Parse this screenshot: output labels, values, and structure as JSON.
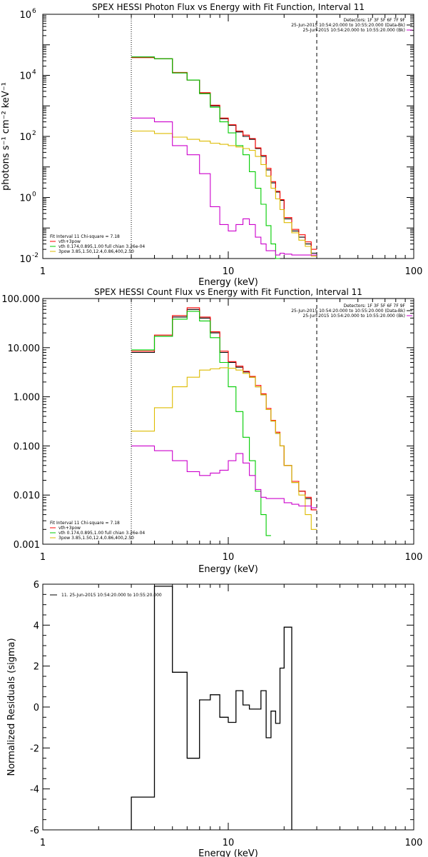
{
  "chart_data": [
    {
      "type": "line",
      "title": "SPEX HESSI Photon Flux vs Energy with Fit Function, Interval 11",
      "xlabel": "Energy (keV)",
      "ylabel": "photons s⁻¹ cm⁻² keV⁻¹",
      "xscale": "log",
      "yscale": "log",
      "xlim": [
        1,
        100
      ],
      "ylim": [
        0.01,
        1000000
      ],
      "x_ticks": [
        1,
        10,
        100
      ],
      "x_tick_labels": [
        "1",
        "10",
        "100"
      ],
      "y_ticks": [
        0.01,
        1,
        100,
        10000,
        1000000
      ],
      "y_tick_labels": [
        [
          "10",
          "-2"
        ],
        [
          "10",
          "0"
        ],
        [
          "10",
          "2"
        ],
        [
          "10",
          "4"
        ],
        [
          "10",
          "6"
        ]
      ],
      "info_lines": [
        "Detectors: 1F 3F 5F 6F 7F 9F",
        "25-Jun-2015 10:54:20.000 to 10:55:20.000 (Data-Bk)",
        "25-Jun-2015 10:54:20.000 to 10:55:20.000 (Bk)"
      ],
      "info_colors": [
        "#000000",
        "#cc00cc"
      ],
      "fit_lines": [
        "Fit Interval 11   Chi-square = 7.18",
        "vth+3pow",
        "vth 0.174,0.895,1.00  full chian 3.26e-04",
        "3pow 3.85,1.50,12.4,0.86,400,2.50"
      ],
      "fit_colors": [
        "#000000",
        "#ff0000",
        "#00cc00",
        "#ddbb00"
      ],
      "vlines": [
        {
          "x": 3,
          "style": "dotted"
        },
        {
          "x": 30,
          "style": "dashed"
        }
      ],
      "edges": [
        3,
        4,
        5,
        6,
        7,
        8,
        9,
        10,
        11,
        12,
        13,
        14,
        15,
        16,
        17,
        18,
        19,
        20,
        22,
        24,
        26,
        28,
        30
      ],
      "series": [
        {
          "color": "#000000",
          "values": [
            40000,
            35000,
            12000,
            7000,
            2600,
            1000,
            380,
            230,
            140,
            100,
            80,
            40,
            22,
            8,
            3,
            1.5,
            0.8,
            0.2,
            0.08,
            0.05,
            0.03,
            0.015
          ]
        },
        {
          "color": "#ff0000",
          "values": [
            38000,
            35000,
            12500,
            7000,
            2700,
            1050,
            400,
            240,
            150,
            110,
            85,
            42,
            24,
            9,
            3.3,
            1.6,
            0.85,
            0.22,
            0.09,
            0.06,
            0.035,
            0.02
          ]
        },
        {
          "color": "#00cc00",
          "values": [
            40000,
            35000,
            12000,
            7000,
            2500,
            900,
            300,
            130,
            50,
            25,
            7,
            2,
            0.6,
            0.12,
            0.03,
            0.01
          ]
        },
        {
          "color": "#ddbb00",
          "values": [
            150,
            125,
            95,
            80,
            70,
            60,
            55,
            50,
            45,
            40,
            35,
            22,
            12,
            5,
            2,
            0.9,
            0.4,
            0.15,
            0.07,
            0.04,
            0.025,
            0.012
          ]
        },
        {
          "color": "#cc00cc",
          "values": [
            400,
            300,
            50,
            25,
            6,
            0.5,
            0.13,
            0.08,
            0.13,
            0.2,
            0.13,
            0.05,
            0.03,
            0.018,
            0.018,
            0.013,
            0.015,
            0.014,
            0.013,
            0.013,
            0.013,
            0.013
          ]
        }
      ]
    },
    {
      "type": "line",
      "title": "SPEX HESSI Count Flux vs Energy with Fit Function, Interval 11",
      "xlabel": "Energy (keV)",
      "ylabel": "",
      "xscale": "log",
      "yscale": "log",
      "xlim": [
        1,
        100
      ],
      "ylim": [
        0.001,
        100
      ],
      "x_ticks": [
        1,
        10,
        100
      ],
      "x_tick_labels": [
        "1",
        "10",
        "100"
      ],
      "y_ticks": [
        0.001,
        0.01,
        0.1,
        1,
        10,
        100
      ],
      "y_tick_labels": [
        "0.001",
        "0.010",
        "0.100",
        "1.000",
        "10.000",
        "100.000"
      ],
      "info_lines": [
        "Detectors: 1F 3F 5F 6F 7F 9F",
        "25-Jun-2015 10:54:20.000 to 10:55:20.000 (Data-Bk)",
        "25-Jun-2015 10:54:20.000 to 10:55:20.000 (Bk)"
      ],
      "info_colors": [
        "#000000",
        "#cc00cc"
      ],
      "fit_lines": [
        "Fit Interval 11   Chi-square = 7.18",
        "vth+3pow",
        "vth 0.174,0.895,1.00  full chian 3.26e-04",
        "3pow 3.85,1.50,12.4,0.86,400,2.50"
      ],
      "fit_colors": [
        "#000000",
        "#ff0000",
        "#00cc00",
        "#ddbb00"
      ],
      "vlines": [
        {
          "x": 3,
          "style": "dotted"
        },
        {
          "x": 30,
          "style": "dashed"
        }
      ],
      "edges": [
        3,
        4,
        5,
        6,
        7,
        8,
        9,
        10,
        11,
        12,
        13,
        14,
        15,
        16,
        17,
        18,
        19,
        20,
        22,
        24,
        26,
        28,
        30
      ],
      "series": [
        {
          "color": "#000000",
          "values": [
            8,
            17,
            42,
            60,
            40,
            20,
            8,
            5,
            4,
            3.2,
            2.5,
            1.6,
            1.1,
            0.55,
            0.32,
            0.18,
            0.1,
            0.04,
            0.018,
            0.012,
            0.0085,
            0.005
          ]
        },
        {
          "color": "#ff0000",
          "values": [
            8.5,
            18,
            45,
            65,
            42,
            21,
            8.5,
            5.2,
            4.2,
            3.3,
            2.6,
            1.7,
            1.15,
            0.58,
            0.33,
            0.19,
            0.1,
            0.04,
            0.019,
            0.012,
            0.009,
            0.005
          ]
        },
        {
          "color": "#00cc00",
          "values": [
            9,
            17,
            38,
            55,
            35,
            16,
            5,
            1.6,
            0.5,
            0.15,
            0.05,
            0.012,
            0.004,
            0.0015
          ]
        },
        {
          "color": "#ddbb00",
          "values": [
            0.2,
            0.6,
            1.6,
            2.5,
            3.5,
            3.7,
            3.9,
            3.8,
            3.5,
            3.0,
            2.5,
            1.6,
            1.1,
            0.55,
            0.32,
            0.18,
            0.1,
            0.04,
            0.018,
            0.01,
            0.004,
            0.002
          ]
        },
        {
          "color": "#cc00cc",
          "values": [
            0.1,
            0.08,
            0.05,
            0.03,
            0.025,
            0.028,
            0.032,
            0.05,
            0.07,
            0.045,
            0.025,
            0.013,
            0.009,
            0.0085,
            0.0085,
            0.0085,
            0.0085,
            0.007,
            0.0065,
            0.006,
            0.006,
            0.0055
          ]
        }
      ]
    },
    {
      "type": "line",
      "title": "",
      "xlabel": "Energy (keV)",
      "ylabel": "Normalized Residuals (sigma)",
      "xscale": "log",
      "yscale": "linear",
      "xlim": [
        1,
        100
      ],
      "ylim": [
        -6,
        6
      ],
      "x_ticks": [
        1,
        10,
        100
      ],
      "x_tick_labels": [
        "1",
        "10",
        "100"
      ],
      "y_ticks": [
        -6,
        -4,
        -2,
        0,
        2,
        4,
        6
      ],
      "y_tick_labels": [
        "-6",
        "-4",
        "-2",
        "0",
        "2",
        "4",
        "6"
      ],
      "legend": "11. 25-Jun-2015 10:54:20.000 to 10:55:20.000",
      "edges": [
        3,
        4,
        5,
        6,
        7,
        8,
        9,
        10,
        11,
        12,
        13,
        14,
        15,
        16,
        17,
        18,
        19,
        20,
        22,
        24,
        26,
        28,
        30
      ],
      "series": [
        {
          "color": "#000000",
          "values": [
            -4.4,
            5.9,
            1.7,
            -2.5,
            0.35,
            0.6,
            -0.5,
            -0.75,
            0.8,
            0.1,
            -0.1,
            -0.1,
            0.8,
            -1.5,
            -0.2,
            -0.8,
            1.9,
            3.9
          ]
        }
      ]
    }
  ]
}
